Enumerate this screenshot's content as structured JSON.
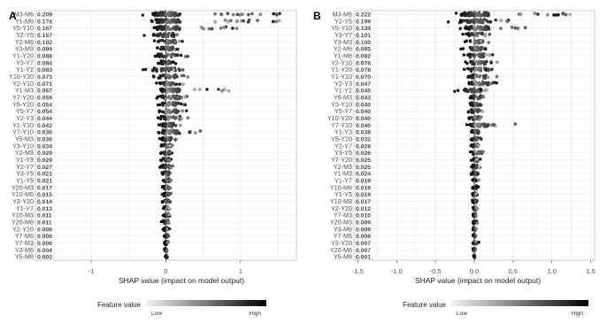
{
  "chart_data": [
    {
      "type": "scatter",
      "panel_label": "A",
      "xlabel": "SHAP value (impact on model output)",
      "xlim": [
        -1.75,
        1.75
      ],
      "xticks": [
        -1,
        0,
        1
      ],
      "grid": true,
      "categories": [
        "M3-M6",
        "Y1-M6",
        "Y5-Y10",
        "Y2-Y5",
        "Y2-M6",
        "Y3-M3",
        "Y1-Y20",
        "Y3-Y7",
        "Y1-Y2",
        "Y10-Y20",
        "Y2-Y10",
        "Y1-M3",
        "Y7-Y20",
        "Y5-Y20",
        "Y5-Y7",
        "Y2-Y3",
        "Y1-Y10",
        "Y7-Y10",
        "Y5-M3",
        "Y3-Y10",
        "Y2-M3",
        "Y1-Y3",
        "Y2-Y7",
        "Y3-Y5",
        "Y1-Y5",
        "Y20-M3",
        "Y10-M6",
        "Y3-Y20",
        "Y1-Y7",
        "Y10-M3",
        "Y20-M6",
        "Y2-Y20",
        "Y7-M6",
        "Y7-M3",
        "Y3-M6",
        "Y5-M6"
      ],
      "mean_abs_shap": [
        "0.209",
        "0.174",
        "0.167",
        "0.157",
        "0.102",
        "0.094",
        "0.088",
        "0.084",
        "0.083",
        "0.073",
        "0.071",
        "0.067",
        "0.059",
        "0.054",
        "0.054",
        "0.044",
        "0.042",
        "0.036",
        "0.036",
        "0.034",
        "0.029",
        "0.029",
        "0.027",
        "0.021",
        "0.021",
        "0.017",
        "0.015",
        "0.014",
        "0.013",
        "0.011",
        "0.011",
        "0.008",
        "0.008",
        "0.006",
        "0.004",
        "0.002"
      ],
      "spread": [
        [
          -0.32,
          1.55
        ],
        [
          -0.25,
          1.55
        ],
        [
          -0.22,
          0.95
        ],
        [
          -0.3,
          0.2
        ],
        [
          -0.18,
          0.25
        ],
        [
          -0.15,
          0.2
        ],
        [
          -0.2,
          0.3
        ],
        [
          -0.12,
          0.15
        ],
        [
          -0.35,
          0.25
        ],
        [
          -0.18,
          0.3
        ],
        [
          -0.15,
          0.25
        ],
        [
          -0.12,
          0.9
        ],
        [
          -0.15,
          0.35
        ],
        [
          -0.12,
          0.3
        ],
        [
          -0.1,
          0.3
        ],
        [
          -0.12,
          0.35
        ],
        [
          -0.1,
          0.2
        ],
        [
          -0.12,
          0.5
        ],
        [
          -0.1,
          0.15
        ],
        [
          -0.08,
          0.12
        ],
        [
          -0.08,
          0.1
        ],
        [
          -0.08,
          0.1
        ],
        [
          -0.08,
          0.12
        ],
        [
          -0.06,
          0.08
        ],
        [
          -0.06,
          0.08
        ],
        [
          -0.05,
          0.1
        ],
        [
          -0.05,
          0.08
        ],
        [
          -0.05,
          0.08
        ],
        [
          -0.04,
          0.06
        ],
        [
          -0.04,
          0.06
        ],
        [
          -0.08,
          0.06
        ],
        [
          -0.04,
          0.05
        ],
        [
          -0.03,
          0.04
        ],
        [
          -0.02,
          0.03
        ],
        [
          -0.02,
          0.02
        ],
        [
          -0.01,
          0.02
        ]
      ]
    },
    {
      "type": "scatter",
      "panel_label": "B",
      "xlabel": "SHAP value (impact on model output)",
      "xlim": [
        -1.55,
        1.55
      ],
      "xticks": [
        -1.5,
        -1.0,
        -0.5,
        0.0,
        0.5,
        1.0,
        1.5
      ],
      "xtick_labels": [
        "-1.5",
        "-1.0",
        "-0.5",
        "0.0",
        "0.5",
        "1.0",
        "1.5"
      ],
      "grid": true,
      "categories": [
        "M3-M6",
        "Y2-Y5",
        "Y5-Y10",
        "Y3-Y7",
        "Y3-M3",
        "Y2-M6",
        "Y1-M6",
        "Y2-Y10",
        "Y1-Y20",
        "Y1-Y10",
        "Y2-Y3",
        "Y1-Y2",
        "Y5-M3",
        "Y3-Y10",
        "Y5-Y7",
        "Y10-Y20",
        "Y7-Y10",
        "Y1-Y3",
        "Y5-Y20",
        "Y2-Y7",
        "Y3-Y5",
        "Y7-Y20",
        "Y2-M3",
        "Y1-M3",
        "Y1-Y7",
        "Y10-M6",
        "Y1-Y5",
        "Y10-M3",
        "Y2-Y20",
        "Y7-M3",
        "Y20-M3",
        "Y3-M6",
        "Y7-M6",
        "Y3-Y20",
        "Y20-M6",
        "Y5-M6"
      ],
      "mean_abs_shap": [
        "0.222",
        "0.199",
        "0.139",
        "0.101",
        "0.100",
        "0.095",
        "0.082",
        "0.078",
        "0.078",
        "0.070",
        "0.047",
        "0.045",
        "0.043",
        "0.040",
        "0.040",
        "0.040",
        "0.040",
        "0.038",
        "0.032",
        "0.028",
        "0.026",
        "0.025",
        "0.025",
        "0.024",
        "0.019",
        "0.019",
        "0.019",
        "0.017",
        "0.012",
        "0.010",
        "0.009",
        "0.009",
        "0.008",
        "0.007",
        "0.007",
        "0.001"
      ],
      "spread": [
        [
          -0.3,
          1.25
        ],
        [
          -0.35,
          0.45
        ],
        [
          -0.2,
          0.7
        ],
        [
          -0.15,
          0.2
        ],
        [
          -0.12,
          0.2
        ],
        [
          -0.18,
          0.25
        ],
        [
          -0.15,
          0.25
        ],
        [
          -0.12,
          0.3
        ],
        [
          -0.15,
          0.35
        ],
        [
          -0.12,
          0.3
        ],
        [
          -0.12,
          0.35
        ],
        [
          -0.28,
          0.18
        ],
        [
          -0.08,
          0.15
        ],
        [
          -0.08,
          0.12
        ],
        [
          -0.08,
          0.12
        ],
        [
          -0.08,
          0.12
        ],
        [
          -0.1,
          0.55
        ],
        [
          -0.06,
          0.1
        ],
        [
          -0.05,
          0.1
        ],
        [
          -0.05,
          0.1
        ],
        [
          -0.05,
          0.2
        ],
        [
          -0.04,
          0.08
        ],
        [
          -0.04,
          0.08
        ],
        [
          -0.04,
          0.08
        ],
        [
          -0.03,
          0.06
        ],
        [
          -0.03,
          0.06
        ],
        [
          -0.03,
          0.06
        ],
        [
          -0.03,
          0.05
        ],
        [
          -0.02,
          0.04
        ],
        [
          -0.02,
          0.04
        ],
        [
          -0.02,
          0.04
        ],
        [
          -0.02,
          0.03
        ],
        [
          -0.02,
          0.03
        ],
        [
          -0.02,
          0.06
        ],
        [
          -0.02,
          0.02
        ],
        [
          -0.01,
          0.01
        ]
      ]
    }
  ],
  "legend": {
    "title": "Feature value",
    "low": "Low",
    "high": "High"
  }
}
